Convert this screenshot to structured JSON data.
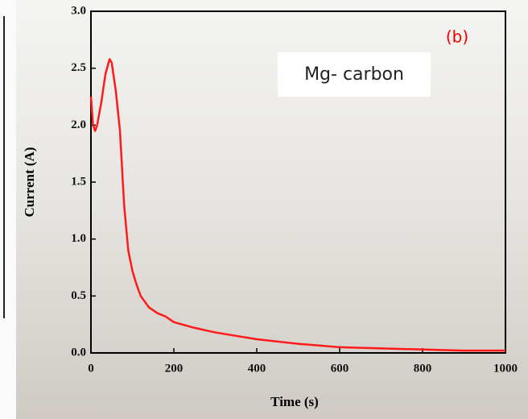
{
  "chart_data": {
    "type": "line",
    "x_label": "Time (s)",
    "y_label": "Current (A)",
    "annotations": [
      "(b)",
      "Mg- carbon"
    ],
    "series": [
      {
        "name": "Mg- carbon",
        "color": "#ff1a1a",
        "x": [
          0,
          5,
          10,
          15,
          25,
          35,
          45,
          50,
          60,
          70,
          80,
          90,
          100,
          110,
          120,
          140,
          160,
          180,
          200,
          250,
          300,
          350,
          400,
          450,
          500,
          600,
          700,
          800,
          900,
          1000
        ],
        "values": [
          2.25,
          2.0,
          1.95,
          2.0,
          2.2,
          2.45,
          2.58,
          2.55,
          2.3,
          1.95,
          1.3,
          0.9,
          0.72,
          0.6,
          0.5,
          0.4,
          0.35,
          0.32,
          0.27,
          0.22,
          0.18,
          0.15,
          0.12,
          0.1,
          0.08,
          0.05,
          0.04,
          0.03,
          0.02,
          0.02
        ]
      }
    ],
    "xlim": [
      0,
      1000
    ],
    "xticks": [
      0,
      200,
      400,
      600,
      800,
      1000
    ],
    "ylim": [
      0,
      3
    ],
    "yticks": [
      {
        "value": 0,
        "label": "0.0"
      },
      0.5,
      {
        "value": 1,
        "label": "1.0"
      },
      1.5,
      {
        "value": 2,
        "label": "2.0"
      },
      2.5,
      {
        "value": 3,
        "label": "3.0"
      }
    ]
  }
}
